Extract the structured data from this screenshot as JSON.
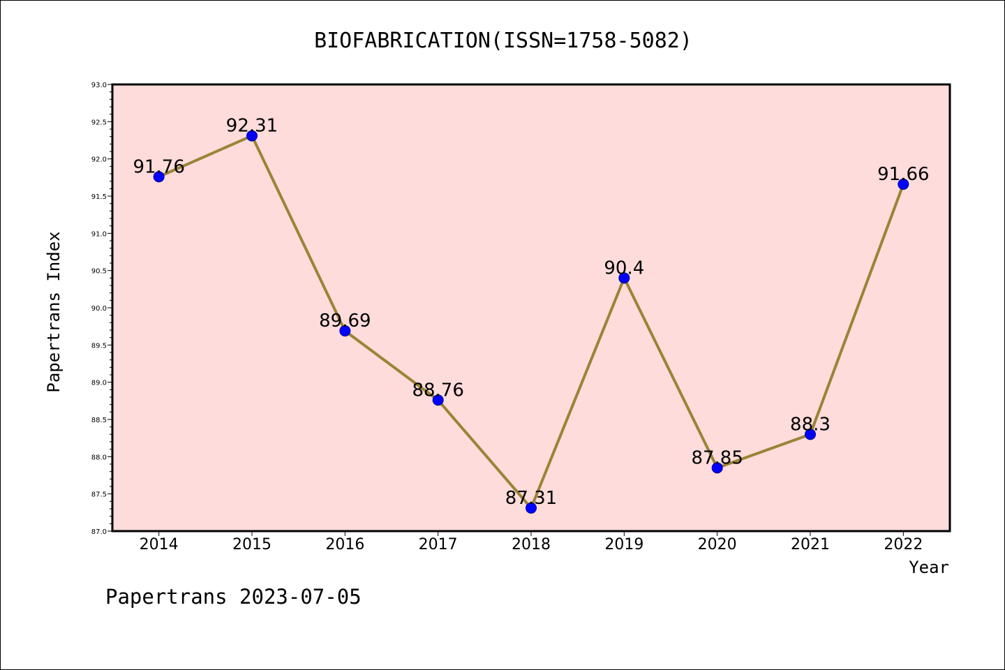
{
  "chart_data": {
    "type": "line",
    "title": "BIOFABRICATION(ISSN=1758-5082)",
    "xlabel": "Year",
    "ylabel": "Papertrans Index",
    "categories": [
      "2014",
      "2015",
      "2016",
      "2017",
      "2018",
      "2019",
      "2020",
      "2021",
      "2022"
    ],
    "series": [
      {
        "name": "Papertrans Index",
        "values": [
          91.76,
          92.31,
          89.69,
          88.76,
          87.31,
          90.4,
          87.85,
          88.3,
          91.66
        ],
        "labels": [
          "91.76",
          "92.31",
          "89.69",
          "88.76",
          "87.31",
          "90.4",
          "87.85",
          "88.3",
          "91.66"
        ]
      }
    ],
    "ylim": [
      87.0,
      93.0
    ],
    "yticks": [
      "87.0",
      "87.5",
      "88.0",
      "88.5",
      "89.0",
      "89.5",
      "90.0",
      "90.5",
      "91.0",
      "91.5",
      "92.0",
      "92.5",
      "93.0"
    ],
    "grid": false,
    "colors": {
      "plot_background": "#fddcdb",
      "line": "#9a8435",
      "marker": "#0000ff",
      "marker_edge": "#00008b"
    }
  },
  "footer": "Papertrans 2023-07-05"
}
